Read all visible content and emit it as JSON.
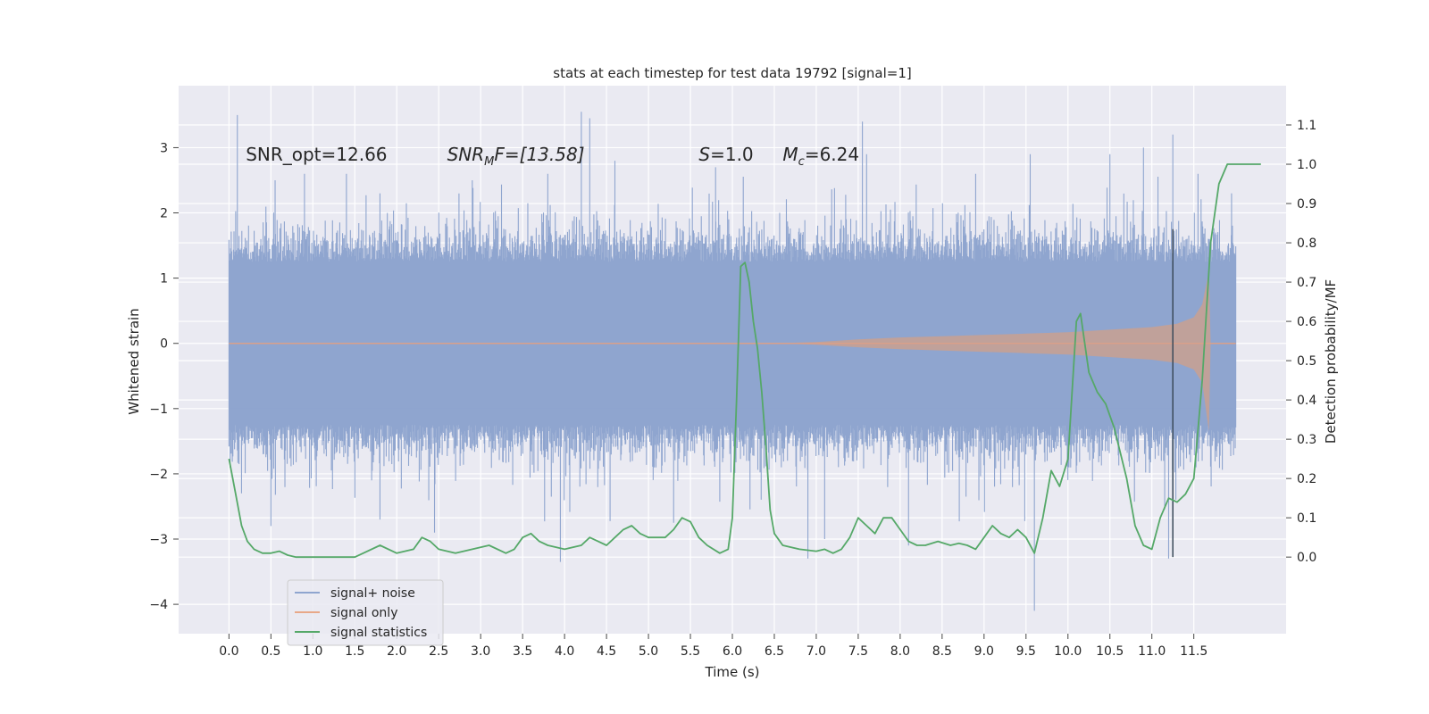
{
  "chart_data": {
    "type": "line",
    "title": "stats at each timestep for test data 19792 [signal=1]",
    "xlabel": "Time (s)",
    "ylabel_left": "Whitened strain",
    "ylabel_right": "Detection probability/MF",
    "xlim": [
      -0.6,
      12.6
    ],
    "ylim_left": [
      -4.45,
      3.95
    ],
    "ylim_right": [
      -0.195,
      1.2
    ],
    "xticks": [
      "0.0",
      "0.5",
      "1.0",
      "1.5",
      "2.0",
      "2.5",
      "3.0",
      "3.5",
      "4.0",
      "4.5",
      "5.0",
      "5.5",
      "6.0",
      "6.5",
      "7.0",
      "7.5",
      "8.0",
      "8.5",
      "9.0",
      "9.5",
      "10.0",
      "10.5",
      "11.0",
      "11.5"
    ],
    "xtick_values": [
      0,
      0.5,
      1,
      1.5,
      2,
      2.5,
      3,
      3.5,
      4,
      4.5,
      5,
      5.5,
      6,
      6.5,
      7,
      7.5,
      8,
      8.5,
      9,
      9.5,
      10,
      10.5,
      11,
      11.5
    ],
    "yticks_left": [
      "−4",
      "−3",
      "−2",
      "−1",
      "0",
      "1",
      "2",
      "3"
    ],
    "ytick_values_left": [
      -4,
      -3,
      -2,
      -1,
      0,
      1,
      2,
      3
    ],
    "yticks_right": [
      "0.0",
      "0.1",
      "0.2",
      "0.3",
      "0.4",
      "0.5",
      "0.6",
      "0.7",
      "0.8",
      "0.9",
      "1.0",
      "1.1"
    ],
    "ytick_values_right": [
      0,
      0.1,
      0.2,
      0.3,
      0.4,
      0.5,
      0.6,
      0.7,
      0.8,
      0.9,
      1.0,
      1.1
    ],
    "annotations": {
      "snr_opt": "SNR_opt=12.66",
      "snr_mf_main": "SNR",
      "snr_mf_sub": "M",
      "snr_mf_rest": "F=[13.58]",
      "s_main": "S",
      "s_rest": "=1.0",
      "mc_main": "M",
      "mc_sub": "c",
      "mc_rest": "=6.24"
    },
    "annotation_positions": {
      "snr_opt": [
        0.2,
        2.8
      ],
      "snr_mf": [
        2.6,
        2.8
      ],
      "s": [
        5.6,
        2.8
      ],
      "mc": [
        6.6,
        2.8
      ]
    },
    "vertical_line_x": 11.25,
    "legend": {
      "position": "lower-left",
      "entries": [
        "signal+ noise",
        "signal only",
        "signal statistics"
      ]
    },
    "series": [
      {
        "name": "signal+ noise",
        "axis": "left",
        "color": "#8fa5cf",
        "description": "whitened strain noise, time 0 to 12 s",
        "t_range": [
          0,
          12
        ],
        "typical_envelope": [
          -1.6,
          1.6
        ],
        "spikes": [
          [
            0.1,
            3.5
          ],
          [
            0.15,
            -2.3
          ],
          [
            0.5,
            -2.8
          ],
          [
            0.55,
            2.5
          ],
          [
            0.9,
            2.6
          ],
          [
            1.4,
            2.6
          ],
          [
            1.8,
            -2.7
          ],
          [
            1.8,
            2.3
          ],
          [
            2.45,
            -2.9
          ],
          [
            2.9,
            2.5
          ],
          [
            3.8,
            2.6
          ],
          [
            3.95,
            -3.35
          ],
          [
            4.2,
            3.55
          ],
          [
            4.3,
            3.45
          ],
          [
            4.6,
            2.8
          ],
          [
            5.3,
            -2.75
          ],
          [
            5.8,
            2.7
          ],
          [
            6.9,
            -3.3
          ],
          [
            7.1,
            -3.0
          ],
          [
            7.55,
            3.4
          ],
          [
            7.6,
            2.9
          ],
          [
            8.1,
            -3.1
          ],
          [
            8.9,
            2.6
          ],
          [
            9.6,
            -4.1
          ],
          [
            9.55,
            2.9
          ],
          [
            10.5,
            2.9
          ],
          [
            10.9,
            3.0
          ],
          [
            11.2,
            -3.3
          ],
          [
            11.25,
            3.2
          ],
          [
            11.55,
            2.6
          ],
          [
            11.95,
            2.3
          ]
        ]
      },
      {
        "name": "signal only",
        "axis": "left",
        "color": "#dd8452",
        "description": "chirp envelope starting near 6.5 s, peaking at 11.68 s",
        "chirp_start": 6.5,
        "merger_time": 11.68,
        "envelope_points": [
          [
            6.5,
            0.0
          ],
          [
            7.0,
            0.02
          ],
          [
            7.5,
            0.06
          ],
          [
            8.0,
            0.09
          ],
          [
            8.5,
            0.11
          ],
          [
            9.0,
            0.13
          ],
          [
            9.5,
            0.15
          ],
          [
            10.0,
            0.17
          ],
          [
            10.5,
            0.21
          ],
          [
            11.0,
            0.25
          ],
          [
            11.3,
            0.3
          ],
          [
            11.5,
            0.4
          ],
          [
            11.6,
            0.6
          ],
          [
            11.68,
            1.1
          ],
          [
            11.7,
            0.0
          ]
        ]
      },
      {
        "name": "signal statistics",
        "axis": "right",
        "color": "#55a868",
        "points": [
          [
            0.0,
            0.25
          ],
          [
            0.08,
            0.16
          ],
          [
            0.15,
            0.08
          ],
          [
            0.22,
            0.04
          ],
          [
            0.3,
            0.02
          ],
          [
            0.4,
            0.01
          ],
          [
            0.5,
            0.01
          ],
          [
            0.6,
            0.015
          ],
          [
            0.7,
            0.005
          ],
          [
            0.8,
            0.0
          ],
          [
            1.0,
            0.0
          ],
          [
            1.2,
            0.0
          ],
          [
            1.5,
            0.0
          ],
          [
            1.6,
            0.01
          ],
          [
            1.8,
            0.03
          ],
          [
            2.0,
            0.01
          ],
          [
            2.2,
            0.02
          ],
          [
            2.3,
            0.05
          ],
          [
            2.4,
            0.04
          ],
          [
            2.5,
            0.02
          ],
          [
            2.7,
            0.01
          ],
          [
            2.9,
            0.02
          ],
          [
            3.1,
            0.03
          ],
          [
            3.3,
            0.01
          ],
          [
            3.4,
            0.02
          ],
          [
            3.5,
            0.05
          ],
          [
            3.6,
            0.06
          ],
          [
            3.7,
            0.04
          ],
          [
            3.8,
            0.03
          ],
          [
            4.0,
            0.02
          ],
          [
            4.2,
            0.03
          ],
          [
            4.3,
            0.05
          ],
          [
            4.4,
            0.04
          ],
          [
            4.5,
            0.03
          ],
          [
            4.6,
            0.05
          ],
          [
            4.7,
            0.07
          ],
          [
            4.8,
            0.08
          ],
          [
            4.9,
            0.06
          ],
          [
            5.0,
            0.05
          ],
          [
            5.2,
            0.05
          ],
          [
            5.3,
            0.07
          ],
          [
            5.4,
            0.1
          ],
          [
            5.5,
            0.09
          ],
          [
            5.6,
            0.05
          ],
          [
            5.7,
            0.03
          ],
          [
            5.85,
            0.01
          ],
          [
            5.95,
            0.02
          ],
          [
            6.0,
            0.1
          ],
          [
            6.05,
            0.4
          ],
          [
            6.1,
            0.74
          ],
          [
            6.15,
            0.75
          ],
          [
            6.2,
            0.7
          ],
          [
            6.25,
            0.6
          ],
          [
            6.3,
            0.53
          ],
          [
            6.35,
            0.42
          ],
          [
            6.4,
            0.28
          ],
          [
            6.45,
            0.12
          ],
          [
            6.5,
            0.06
          ],
          [
            6.6,
            0.03
          ],
          [
            6.8,
            0.02
          ],
          [
            7.0,
            0.015
          ],
          [
            7.1,
            0.02
          ],
          [
            7.2,
            0.01
          ],
          [
            7.3,
            0.02
          ],
          [
            7.4,
            0.05
          ],
          [
            7.5,
            0.1
          ],
          [
            7.6,
            0.08
          ],
          [
            7.7,
            0.06
          ],
          [
            7.8,
            0.1
          ],
          [
            7.9,
            0.1
          ],
          [
            8.0,
            0.07
          ],
          [
            8.1,
            0.04
          ],
          [
            8.2,
            0.03
          ],
          [
            8.3,
            0.03
          ],
          [
            8.45,
            0.04
          ],
          [
            8.6,
            0.03
          ],
          [
            8.7,
            0.035
          ],
          [
            8.8,
            0.03
          ],
          [
            8.9,
            0.02
          ],
          [
            9.0,
            0.05
          ],
          [
            9.1,
            0.08
          ],
          [
            9.2,
            0.06
          ],
          [
            9.3,
            0.05
          ],
          [
            9.4,
            0.07
          ],
          [
            9.5,
            0.05
          ],
          [
            9.6,
            0.01
          ],
          [
            9.7,
            0.1
          ],
          [
            9.8,
            0.22
          ],
          [
            9.9,
            0.18
          ],
          [
            10.0,
            0.25
          ],
          [
            10.1,
            0.6
          ],
          [
            10.15,
            0.62
          ],
          [
            10.25,
            0.47
          ],
          [
            10.35,
            0.42
          ],
          [
            10.45,
            0.39
          ],
          [
            10.55,
            0.33
          ],
          [
            10.7,
            0.2
          ],
          [
            10.8,
            0.08
          ],
          [
            10.9,
            0.03
          ],
          [
            11.0,
            0.02
          ],
          [
            11.1,
            0.1
          ],
          [
            11.2,
            0.15
          ],
          [
            11.3,
            0.14
          ],
          [
            11.4,
            0.16
          ],
          [
            11.5,
            0.2
          ],
          [
            11.6,
            0.45
          ],
          [
            11.7,
            0.8
          ],
          [
            11.8,
            0.95
          ],
          [
            11.9,
            1.0
          ],
          [
            12.0,
            1.0
          ],
          [
            12.3,
            1.0
          ]
        ]
      }
    ]
  }
}
